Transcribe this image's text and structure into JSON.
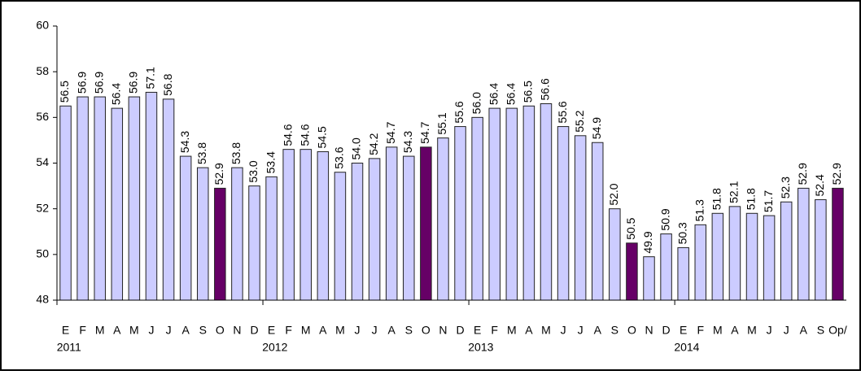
{
  "chart_data": {
    "type": "bar",
    "categories": [
      "E",
      "F",
      "M",
      "A",
      "M",
      "J",
      "J",
      "A",
      "S",
      "O",
      "N",
      "D",
      "E",
      "F",
      "M",
      "A",
      "M",
      "J",
      "J",
      "A",
      "S",
      "O",
      "N",
      "D",
      "E",
      "F",
      "M",
      "A",
      "M",
      "J",
      "J",
      "A",
      "S",
      "O",
      "N",
      "D",
      "E",
      "F",
      "M",
      "A",
      "M",
      "J",
      "J",
      "A",
      "S",
      "Op/"
    ],
    "category_groups": [
      "2011",
      "2012",
      "2013",
      "2014"
    ],
    "values": [
      56.5,
      56.9,
      56.9,
      56.4,
      56.9,
      57.1,
      56.8,
      54.3,
      53.8,
      52.9,
      53.8,
      53.0,
      53.4,
      54.6,
      54.6,
      54.5,
      53.6,
      54.0,
      54.2,
      54.7,
      54.3,
      54.7,
      55.1,
      55.6,
      56.0,
      56.4,
      56.4,
      56.5,
      56.6,
      55.6,
      55.2,
      54.9,
      52.0,
      50.5,
      49.9,
      50.9,
      50.3,
      51.3,
      51.8,
      52.1,
      51.8,
      51.7,
      52.3,
      52.9,
      52.4,
      52.9
    ],
    "value_labels": [
      "56.5",
      "56.9",
      "56.9",
      "56.4",
      "56.9",
      "57.1",
      "56.8",
      "54.3",
      "53.8",
      "52.9",
      "53.8",
      "53.0",
      "53.4",
      "54.6",
      "54.6",
      "54.5",
      "53.6",
      "54.0",
      "54.2",
      "54.7",
      "54.3",
      "54.7",
      "55.1",
      "55.6",
      "56.0",
      "56.4",
      "56.4",
      "56.5",
      "56.6",
      "55.6",
      "55.2",
      "54.9",
      "52.0",
      "50.5",
      "49.9",
      "50.9",
      "50.3",
      "51.3",
      "51.8",
      "52.1",
      "51.8",
      "51.7",
      "52.3",
      "52.9",
      "52.4",
      "52.9"
    ],
    "colors": [
      "#ccccff",
      "#ccccff",
      "#ccccff",
      "#ccccff",
      "#ccccff",
      "#ccccff",
      "#ccccff",
      "#ccccff",
      "#ccccff",
      "#660066",
      "#ccccff",
      "#ccccff",
      "#ccccff",
      "#ccccff",
      "#ccccff",
      "#ccccff",
      "#ccccff",
      "#ccccff",
      "#ccccff",
      "#ccccff",
      "#ccccff",
      "#660066",
      "#ccccff",
      "#ccccff",
      "#ccccff",
      "#ccccff",
      "#ccccff",
      "#ccccff",
      "#ccccff",
      "#ccccff",
      "#ccccff",
      "#ccccff",
      "#ccccff",
      "#660066",
      "#ccccff",
      "#ccccff",
      "#ccccff",
      "#ccccff",
      "#ccccff",
      "#ccccff",
      "#ccccff",
      "#ccccff",
      "#ccccff",
      "#ccccff",
      "#ccccff",
      "#660066"
    ],
    "ylim": [
      48,
      60
    ],
    "yticks": [
      48,
      50,
      52,
      54,
      56,
      58,
      60
    ],
    "grid": false
  }
}
